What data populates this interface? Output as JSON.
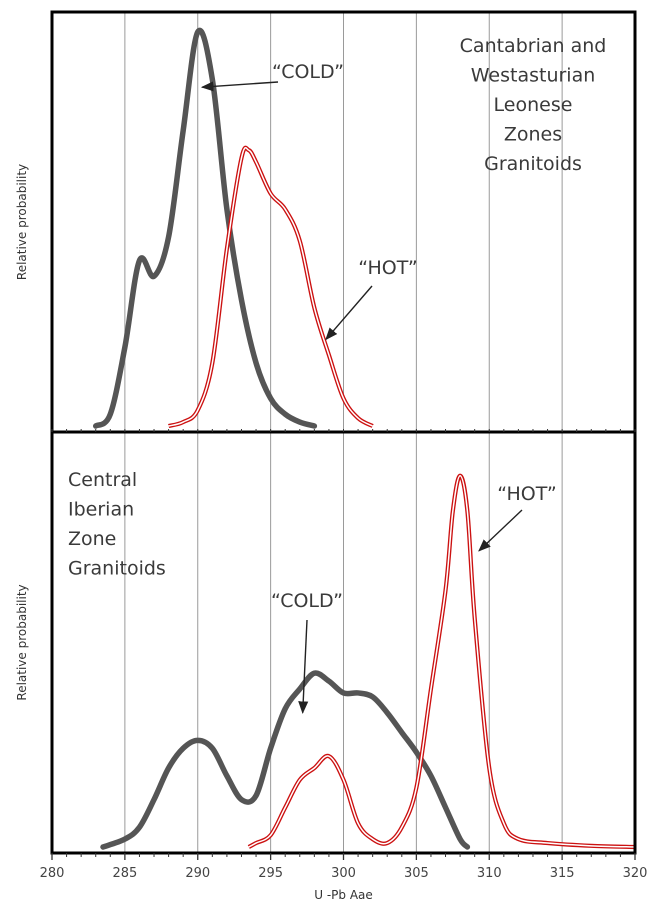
{
  "chart_data": [
    {
      "type": "line",
      "panel": "top",
      "ylabel": "Relative probability",
      "xlim": [
        280,
        320
      ],
      "grid": true,
      "annotations": [
        {
          "lines": [
            "Cantabrian and",
            "Westasturian",
            "Leonese",
            "Zones",
            "Granitoids"
          ],
          "role": "panel-title"
        },
        {
          "text": "“COLD”",
          "series": "COLD",
          "arrow_target": [
            290.3,
            0.86
          ]
        },
        {
          "text": "“HOT”",
          "series": "HOT",
          "arrow_target": [
            298.8,
            0.22
          ]
        }
      ],
      "series": [
        {
          "name": "COLD",
          "color": "#555555",
          "style": "thick-gray",
          "points": [
            [
              283,
              0
            ],
            [
              284,
              0.03
            ],
            [
              285,
              0.2
            ],
            [
              286,
              0.42
            ],
            [
              287,
              0.38
            ],
            [
              288,
              0.48
            ],
            [
              289,
              0.75
            ],
            [
              290,
              1.0
            ],
            [
              291,
              0.88
            ],
            [
              292,
              0.55
            ],
            [
              293,
              0.32
            ],
            [
              294,
              0.16
            ],
            [
              295,
              0.07
            ],
            [
              296,
              0.03
            ],
            [
              297,
              0.01
            ],
            [
              298,
              0
            ]
          ]
        },
        {
          "name": "HOT",
          "color": "#cc1111",
          "style": "double-red",
          "points": [
            [
              288,
              0
            ],
            [
              289,
              0.01
            ],
            [
              290,
              0.04
            ],
            [
              291,
              0.16
            ],
            [
              292,
              0.45
            ],
            [
              293,
              0.68
            ],
            [
              293.5,
              0.7
            ],
            [
              294,
              0.67
            ],
            [
              295,
              0.59
            ],
            [
              296,
              0.55
            ],
            [
              297,
              0.47
            ],
            [
              298,
              0.3
            ],
            [
              299,
              0.18
            ],
            [
              300,
              0.07
            ],
            [
              301,
              0.02
            ],
            [
              302,
              0
            ]
          ]
        }
      ]
    },
    {
      "type": "line",
      "panel": "bottom",
      "ylabel": "Relative probability",
      "xlabel": "U -Pb Aae",
      "xlim": [
        280,
        320
      ],
      "xticks": [
        280,
        285,
        290,
        295,
        300,
        305,
        310,
        315,
        320
      ],
      "grid": true,
      "annotations": [
        {
          "lines": [
            "Central",
            "Iberian",
            "Zone",
            "Granitoids"
          ],
          "role": "panel-title"
        },
        {
          "text": "“COLD”",
          "series": "COLD",
          "arrow_target": [
            297.2,
            0.34
          ]
        },
        {
          "text": "“HOT”",
          "series": "HOT",
          "arrow_target": [
            309.3,
            0.75
          ]
        }
      ],
      "series": [
        {
          "name": "COLD",
          "color": "#555555",
          "style": "thick-gray",
          "points": [
            [
              283.5,
              0
            ],
            [
              285,
              0.02
            ],
            [
              286,
              0.05
            ],
            [
              287,
              0.12
            ],
            [
              288,
              0.2
            ],
            [
              289,
              0.25
            ],
            [
              290,
              0.27
            ],
            [
              291,
              0.25
            ],
            [
              292,
              0.18
            ],
            [
              293,
              0.12
            ],
            [
              294,
              0.13
            ],
            [
              295,
              0.25
            ],
            [
              296,
              0.35
            ],
            [
              297,
              0.4
            ],
            [
              298,
              0.44
            ],
            [
              299,
              0.42
            ],
            [
              300,
              0.39
            ],
            [
              301,
              0.39
            ],
            [
              302,
              0.38
            ],
            [
              303,
              0.34
            ],
            [
              304,
              0.29
            ],
            [
              305,
              0.24
            ],
            [
              306,
              0.18
            ],
            [
              307,
              0.1
            ],
            [
              308,
              0.02
            ],
            [
              308.5,
              0
            ]
          ]
        },
        {
          "name": "HOT",
          "color": "#cc1111",
          "style": "double-red",
          "points": [
            [
              293.5,
              0
            ],
            [
              294,
              0.01
            ],
            [
              295,
              0.03
            ],
            [
              296,
              0.1
            ],
            [
              297,
              0.17
            ],
            [
              298,
              0.2
            ],
            [
              299,
              0.23
            ],
            [
              300,
              0.17
            ],
            [
              301,
              0.06
            ],
            [
              302,
              0.02
            ],
            [
              303,
              0.01
            ],
            [
              304,
              0.05
            ],
            [
              305,
              0.15
            ],
            [
              306,
              0.4
            ],
            [
              307,
              0.65
            ],
            [
              307.5,
              0.85
            ],
            [
              308,
              0.94
            ],
            [
              308.5,
              0.85
            ],
            [
              309,
              0.58
            ],
            [
              310,
              0.2
            ],
            [
              311,
              0.06
            ],
            [
              312,
              0.02
            ],
            [
              314,
              0.01
            ],
            [
              317,
              0.003
            ],
            [
              320,
              0
            ]
          ]
        }
      ]
    }
  ]
}
